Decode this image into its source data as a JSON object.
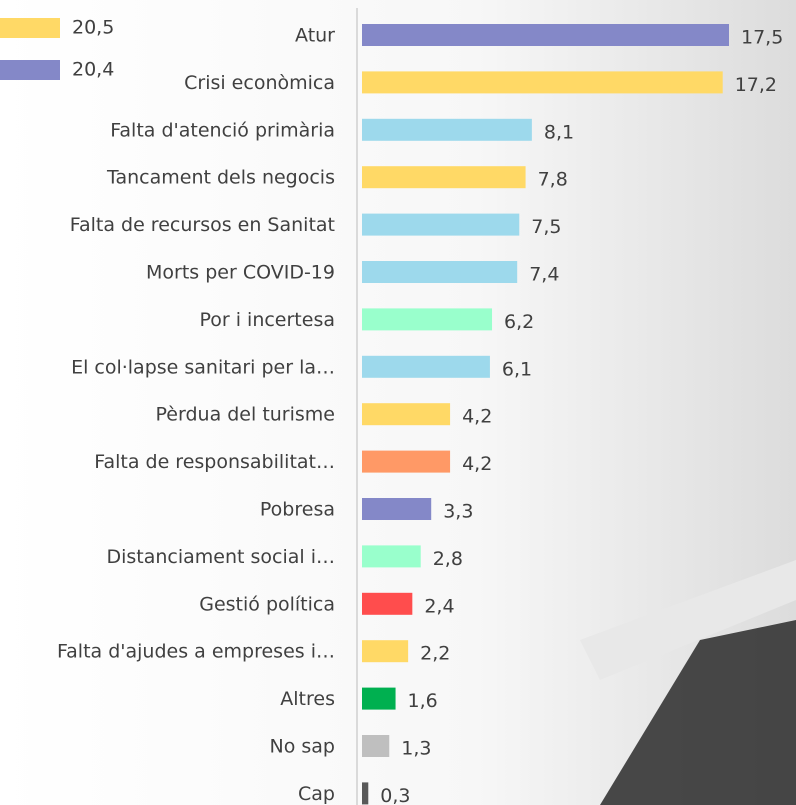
{
  "chart_data": {
    "type": "barh",
    "legend": [
      {
        "label": "20,5",
        "color": "#ffd966"
      },
      {
        "label": "20,4",
        "color": "#8488c8"
      }
    ],
    "categories": [
      "Atur",
      "Crisi econòmica",
      "Falta d'atenció primària",
      "Tancament dels negocis",
      "Falta de recursos en Sanitat",
      "Morts per COVID-19",
      "Por i incertesa",
      "El col·lapse sanitari per la…",
      "Pèrdua del turisme",
      "Falta de responsabilitat…",
      "Pobresa",
      "Distanciament social i…",
      "Gestió política",
      "Falta d'ajudes a empreses i…",
      "Altres",
      "No sap",
      "Cap"
    ],
    "values": [
      17.5,
      17.2,
      8.1,
      7.8,
      7.5,
      7.4,
      6.2,
      6.1,
      4.2,
      4.2,
      3.3,
      2.8,
      2.4,
      2.2,
      1.6,
      1.3,
      0.3
    ],
    "value_labels": [
      "17,5",
      "17,2",
      "8,1",
      "7,8",
      "7,5",
      "7,4",
      "6,2",
      "6,1",
      "4,2",
      "4,2",
      "3,3",
      "2,8",
      "2,4",
      "2,2",
      "1,6",
      "1,3",
      "0,3"
    ],
    "colors": [
      "#8488c8",
      "#ffd966",
      "#9dd9ec",
      "#ffd966",
      "#9dd9ec",
      "#9dd9ec",
      "#99ffcc",
      "#9dd9ec",
      "#ffd966",
      "#ff9966",
      "#8488c8",
      "#99ffcc",
      "#ff4d4d",
      "#ffd966",
      "#00b050",
      "#bfbfbf",
      "#595959"
    ]
  }
}
